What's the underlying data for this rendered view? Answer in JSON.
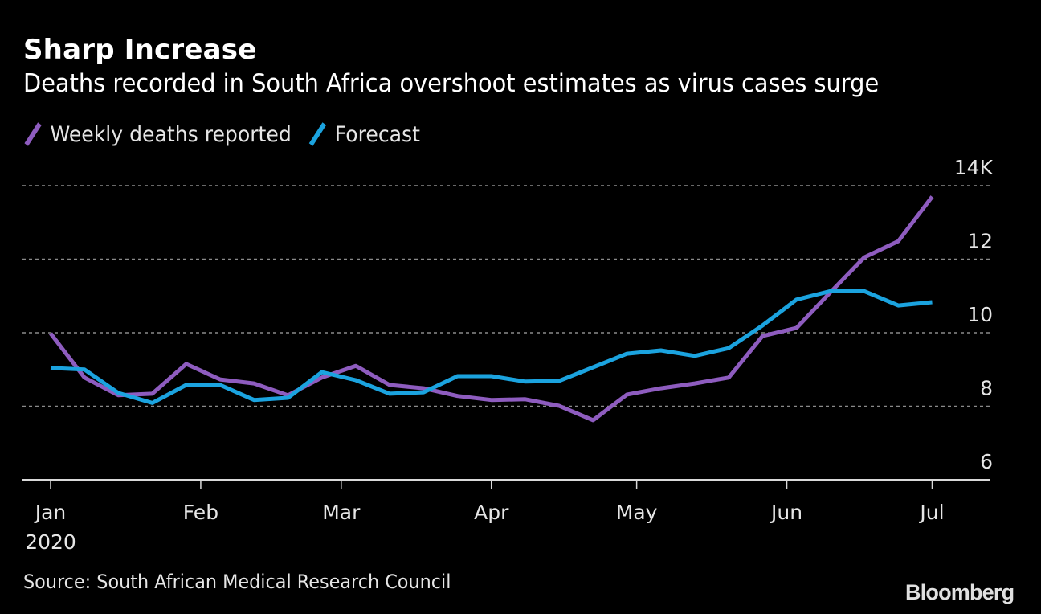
{
  "chart_data": {
    "type": "line",
    "title": "Sharp Increase",
    "subtitle": "Deaths recorded in South Africa overshoot estimates as virus cases surge",
    "xlabel": "",
    "ylabel": "",
    "x_unit": "week",
    "x_start": "2020-01-01",
    "x_ticks": [
      {
        "label": "Jan",
        "sublabel": "2020",
        "day": 0
      },
      {
        "label": "Feb",
        "day": 31
      },
      {
        "label": "Mar",
        "day": 60
      },
      {
        "label": "Apr",
        "day": 91
      },
      {
        "label": "May",
        "day": 121
      },
      {
        "label": "Jun",
        "day": 152
      },
      {
        "label": "Jul",
        "day": 182
      }
    ],
    "x_range_days": [
      -6,
      193
    ],
    "ylim": [
      6,
      14
    ],
    "y_ticks": [
      {
        "value": 6,
        "label": "6"
      },
      {
        "value": 8,
        "label": "8"
      },
      {
        "value": 10,
        "label": "10"
      },
      {
        "value": 12,
        "label": "12"
      },
      {
        "value": 14,
        "label": "14K"
      }
    ],
    "gridlines": [
      8,
      10,
      12,
      14
    ],
    "grid": true,
    "legend_position": "top-left",
    "x_days": [
      0,
      7,
      14,
      21,
      28,
      35,
      42,
      49,
      56,
      63,
      70,
      77,
      84,
      91,
      98,
      105,
      112,
      119,
      126,
      133,
      140,
      147,
      154,
      161,
      168,
      175,
      182
    ],
    "series": [
      {
        "name": "Weekly deaths reported",
        "color": "#8e5cbf",
        "values": [
          9.98,
          8.78,
          8.3,
          8.34,
          9.15,
          8.73,
          8.62,
          8.3,
          8.78,
          9.1,
          8.58,
          8.49,
          8.28,
          8.17,
          8.19,
          8.01,
          7.62,
          8.32,
          8.49,
          8.62,
          8.78,
          9.91,
          10.13,
          11.1,
          12.05,
          12.49,
          13.7
        ]
      },
      {
        "name": "Forecast",
        "color": "#1ba3df",
        "values": [
          9.04,
          9.0,
          8.36,
          8.09,
          8.58,
          8.58,
          8.17,
          8.23,
          8.93,
          8.71,
          8.34,
          8.38,
          8.82,
          8.82,
          8.67,
          8.69,
          9.06,
          9.43,
          9.52,
          9.37,
          9.58,
          10.2,
          10.9,
          11.13,
          11.13,
          10.74,
          10.83
        ]
      }
    ]
  },
  "legend": {
    "items": [
      {
        "label": "Weekly deaths reported",
        "color": "#8e5cbf"
      },
      {
        "label": "Forecast",
        "color": "#1ba3df"
      }
    ]
  },
  "footer": {
    "source": "Source: South African Medical Research Council",
    "brand": "Bloomberg"
  },
  "colors": {
    "background": "#000000",
    "gridline": "#8a8a8a",
    "axis": "#d9d9d9"
  }
}
